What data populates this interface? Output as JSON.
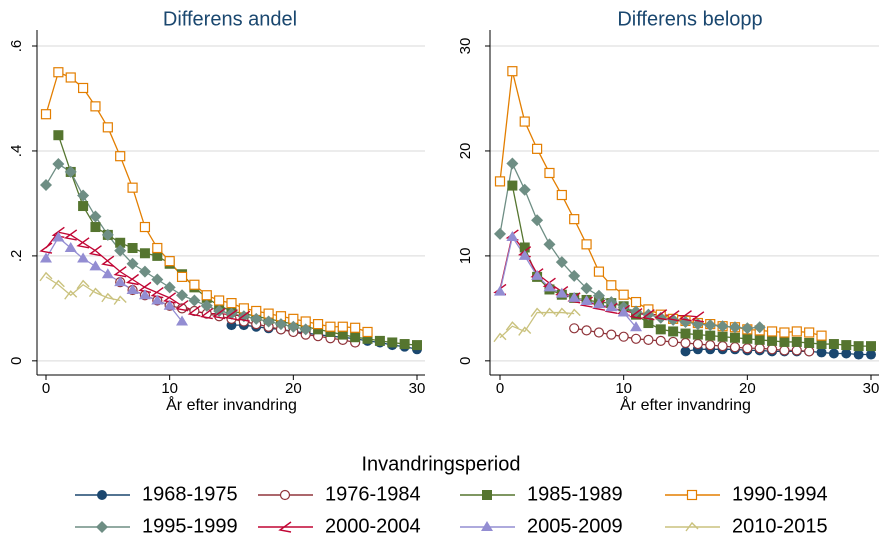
{
  "legend_title": "Invandringsperiod",
  "chart_data": [
    {
      "type": "line",
      "title": "Differens andel",
      "xlabel": "År efter invandring",
      "xlim": [
        0,
        30
      ],
      "xticks": [
        0,
        10,
        20,
        30
      ],
      "ylim": [
        -0.027,
        0.6
      ],
      "yticks": [
        0,
        {
          "value": 0.2,
          "label": ".2"
        },
        {
          "value": 0.4,
          "label": ".4"
        },
        {
          "value": 0.6,
          "label": ".6"
        }
      ],
      "grid": true,
      "series": [
        {
          "name": "1968-1975",
          "color": "#1a476f",
          "marker": "circle",
          "x": [
            15,
            16,
            17,
            18,
            19,
            20,
            21,
            22,
            23,
            24,
            25,
            26,
            27,
            28,
            29,
            30
          ],
          "values": [
            0.068,
            0.068,
            0.065,
            0.062,
            0.06,
            0.056,
            0.053,
            0.05,
            0.047,
            0.045,
            0.042,
            0.038,
            0.035,
            0.03,
            0.027,
            0.022
          ]
        },
        {
          "name": "1976-1984",
          "color": "#90353b",
          "marker": "circle-open",
          "x": [
            6,
            7,
            8,
            9,
            10,
            11,
            12,
            13,
            14,
            15,
            16,
            17,
            18,
            19,
            20,
            21,
            22,
            23,
            24,
            25
          ],
          "values": [
            0.15,
            0.135,
            0.125,
            0.115,
            0.105,
            0.1,
            0.095,
            0.09,
            0.085,
            0.08,
            0.075,
            0.07,
            0.065,
            0.06,
            0.055,
            0.05,
            0.047,
            0.043,
            0.04,
            0.035
          ]
        },
        {
          "name": "1985-1989",
          "color": "#55752f",
          "marker": "square",
          "x": [
            1,
            2,
            3,
            4,
            5,
            6,
            7,
            8,
            9,
            10,
            11,
            12,
            13,
            14,
            15,
            16,
            17,
            18,
            19,
            20,
            21,
            22,
            23,
            24,
            25,
            26,
            27,
            28,
            29,
            30
          ],
          "values": [
            0.43,
            0.36,
            0.295,
            0.255,
            0.24,
            0.225,
            0.215,
            0.205,
            0.2,
            0.185,
            0.165,
            0.14,
            0.12,
            0.105,
            0.095,
            0.09,
            0.085,
            0.08,
            0.075,
            0.07,
            0.065,
            0.06,
            0.055,
            0.05,
            0.045,
            0.042,
            0.038,
            0.035,
            0.032,
            0.03
          ]
        },
        {
          "name": "1990-1994",
          "color": "#e37e00",
          "marker": "square-open",
          "x": [
            0,
            1,
            2,
            3,
            4,
            5,
            6,
            7,
            8,
            9,
            10,
            11,
            12,
            13,
            14,
            15,
            16,
            17,
            18,
            19,
            20,
            21,
            22,
            23,
            24,
            25,
            26
          ],
          "values": [
            0.47,
            0.55,
            0.54,
            0.52,
            0.485,
            0.445,
            0.39,
            0.33,
            0.255,
            0.215,
            0.19,
            0.16,
            0.145,
            0.125,
            0.115,
            0.11,
            0.1,
            0.095,
            0.09,
            0.085,
            0.08,
            0.075,
            0.07,
            0.065,
            0.065,
            0.063,
            0.055
          ]
        },
        {
          "name": "1995-1999",
          "color": "#6e8e84",
          "marker": "diamond",
          "x": [
            0,
            1,
            2,
            3,
            4,
            5,
            6,
            7,
            8,
            9,
            10,
            11,
            12,
            13,
            14,
            15,
            16,
            17,
            18,
            19,
            20,
            21
          ],
          "values": [
            0.335,
            0.375,
            0.36,
            0.315,
            0.275,
            0.24,
            0.21,
            0.185,
            0.17,
            0.155,
            0.14,
            0.125,
            0.115,
            0.105,
            0.095,
            0.09,
            0.085,
            0.08,
            0.075,
            0.07,
            0.065,
            0.06
          ]
        },
        {
          "name": "2000-2004",
          "color": "#c10534",
          "marker": "angle-left",
          "x": [
            0,
            1,
            2,
            3,
            4,
            5,
            6,
            7,
            8,
            9,
            10,
            11,
            12,
            13,
            14,
            15,
            16
          ],
          "values": [
            0.215,
            0.245,
            0.24,
            0.225,
            0.21,
            0.19,
            0.17,
            0.155,
            0.14,
            0.13,
            0.12,
            0.105,
            0.095,
            0.09,
            0.09,
            0.088,
            0.085
          ]
        },
        {
          "name": "2005-2009",
          "color": "#938dd2",
          "marker": "triangle",
          "x": [
            0,
            1,
            2,
            3,
            4,
            5,
            6,
            7,
            8,
            9,
            10,
            11
          ],
          "values": [
            0.195,
            0.235,
            0.215,
            0.195,
            0.18,
            0.165,
            0.15,
            0.135,
            0.125,
            0.115,
            0.105,
            0.075
          ]
        },
        {
          "name": "2010-2015",
          "color": "#cac27e",
          "marker": "angle-up",
          "x": [
            0,
            1,
            2,
            3,
            4,
            5,
            6
          ],
          "values": [
            0.16,
            0.145,
            0.125,
            0.145,
            0.13,
            0.12,
            0.115
          ]
        }
      ]
    },
    {
      "type": "line",
      "title": "Differens belopp",
      "xlabel": "År efter invandring",
      "xlim": [
        0,
        30
      ],
      "xticks": [
        0,
        10,
        20,
        30
      ],
      "ylim": [
        -1.35,
        30
      ],
      "yticks": [
        0,
        10,
        20,
        30
      ],
      "grid": true,
      "series": [
        {
          "color": "#1a476f",
          "marker": "circle",
          "x": [
            15,
            16,
            17,
            18,
            19,
            20,
            21,
            22,
            23,
            24,
            25,
            26,
            27,
            28,
            29,
            30
          ],
          "values": [
            0.9,
            1.1,
            1.1,
            1.1,
            1.1,
            1.0,
            1.0,
            0.9,
            0.9,
            0.9,
            0.9,
            0.8,
            0.7,
            0.7,
            0.6,
            0.6
          ]
        },
        {
          "color": "#90353b",
          "marker": "circle-open",
          "x": [
            6,
            7,
            8,
            9,
            10,
            11,
            12,
            13,
            14,
            15,
            16,
            17,
            18,
            19,
            20,
            21,
            22,
            23,
            24,
            25
          ],
          "values": [
            3.1,
            2.9,
            2.7,
            2.5,
            2.3,
            2.1,
            2.0,
            1.9,
            1.8,
            1.7,
            1.6,
            1.5,
            1.4,
            1.3,
            1.2,
            1.2,
            1.1,
            1.0,
            1.0,
            0.9
          ]
        },
        {
          "color": "#55752f",
          "marker": "square",
          "x": [
            1,
            2,
            3,
            4,
            5,
            6,
            7,
            8,
            9,
            10,
            11,
            12,
            13,
            14,
            15,
            16,
            17,
            18,
            19,
            20,
            21,
            22,
            23,
            24,
            25,
            26,
            27,
            28,
            29,
            30
          ],
          "values": [
            16.7,
            10.8,
            8.0,
            6.8,
            6.3,
            6.0,
            5.8,
            5.6,
            5.5,
            5.2,
            4.4,
            3.6,
            3.0,
            2.8,
            2.6,
            2.5,
            2.4,
            2.3,
            2.2,
            2.1,
            2.0,
            1.9,
            1.8,
            1.8,
            1.7,
            1.6,
            1.6,
            1.5,
            1.4,
            1.4
          ]
        },
        {
          "color": "#e37e00",
          "marker": "square-open",
          "x": [
            0,
            1,
            2,
            3,
            4,
            5,
            6,
            7,
            8,
            9,
            10,
            11,
            12,
            13,
            14,
            15,
            16,
            17,
            18,
            19,
            20,
            21,
            22,
            23,
            24,
            25,
            26
          ],
          "values": [
            17.1,
            27.6,
            22.8,
            20.2,
            17.9,
            15.8,
            13.5,
            11.1,
            8.5,
            7.2,
            6.3,
            5.6,
            4.9,
            4.4,
            4.0,
            3.8,
            3.6,
            3.5,
            3.3,
            3.2,
            3.0,
            2.9,
            2.8,
            2.7,
            2.8,
            2.7,
            2.4
          ]
        },
        {
          "color": "#6e8e84",
          "marker": "diamond",
          "x": [
            0,
            1,
            2,
            3,
            4,
            5,
            6,
            7,
            8,
            9,
            10,
            11,
            12,
            13,
            14,
            15,
            16,
            17,
            18,
            19,
            20,
            21
          ],
          "values": [
            12.1,
            18.8,
            16.3,
            13.4,
            11.1,
            9.4,
            8.1,
            6.9,
            6.2,
            5.6,
            5.1,
            4.7,
            4.4,
            4.1,
            3.9,
            3.7,
            3.5,
            3.4,
            3.3,
            3.2,
            3.1,
            3.2
          ]
        },
        {
          "color": "#c10534",
          "marker": "angle-left",
          "x": [
            0,
            1,
            2,
            3,
            4,
            5,
            6,
            7,
            8,
            9,
            10,
            11,
            12,
            13,
            14,
            15,
            16
          ],
          "values": [
            6.8,
            12.0,
            10.4,
            8.3,
            7.4,
            6.6,
            6.0,
            5.6,
            5.3,
            5.0,
            4.8,
            4.5,
            4.4,
            4.4,
            4.3,
            4.3,
            4.2
          ]
        },
        {
          "color": "#938dd2",
          "marker": "triangle",
          "x": [
            0,
            1,
            2,
            3,
            4,
            5,
            6,
            7,
            8,
            9,
            10,
            11
          ],
          "values": [
            6.6,
            11.8,
            10.0,
            8.1,
            7.0,
            6.4,
            6.0,
            5.7,
            5.4,
            5.1,
            4.6,
            3.2
          ]
        },
        {
          "color": "#cac27e",
          "marker": "angle-up",
          "x": [
            0,
            1,
            2,
            3,
            4,
            5,
            6
          ],
          "values": [
            2.2,
            3.3,
            2.8,
            4.6,
            4.6,
            4.6,
            4.5
          ]
        }
      ]
    }
  ]
}
